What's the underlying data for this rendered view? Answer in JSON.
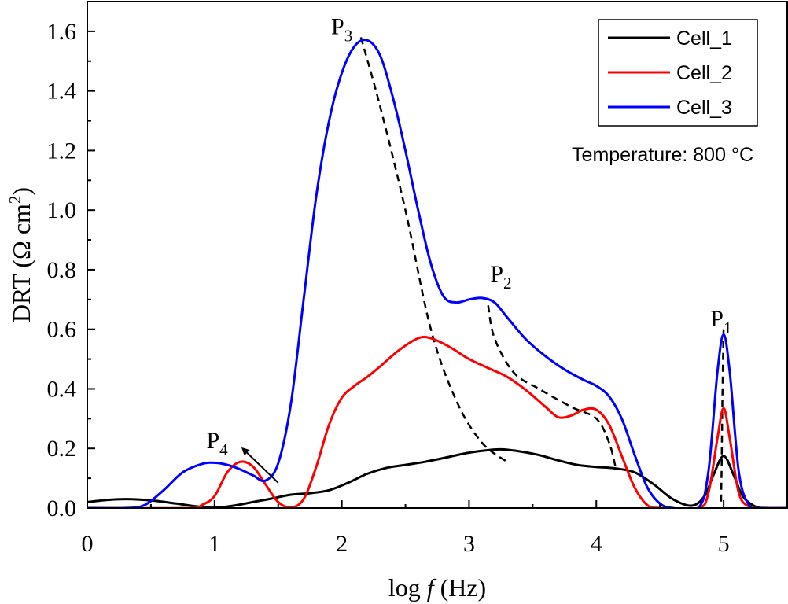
{
  "chart_data": {
    "type": "line",
    "xlabel": "log f (Hz)",
    "xlabel_parts": {
      "pre": "log ",
      "italic": "f",
      "post": " (Hz)"
    },
    "ylabel": "DRT (Ω cm2)",
    "ylabel_parts": {
      "main": "DRT (Ω cm",
      "sup": "2",
      "close": ")"
    },
    "xlim": [
      0,
      5.5
    ],
    "ylim": [
      0,
      1.7
    ],
    "x_ticks": [
      0,
      1,
      2,
      3,
      4,
      5
    ],
    "x_tick_labels": [
      "0",
      "1",
      "2",
      "3",
      "4",
      "5"
    ],
    "y_ticks": [
      0,
      0.2,
      0.4,
      0.6,
      0.8,
      1.0,
      1.2,
      1.4,
      1.6
    ],
    "y_tick_labels": [
      "0.0",
      "0.2",
      "0.4",
      "0.6",
      "0.8",
      "1.0",
      "1.2",
      "1.4",
      "1.6"
    ],
    "grid": false,
    "legend_position": "top-right",
    "annotation": "Temperature: 800 °C",
    "series": [
      {
        "name": "Cell_1",
        "color": "#000000",
        "points": [
          [
            0,
            0.02
          ],
          [
            0.15,
            0.027
          ],
          [
            0.3,
            0.03
          ],
          [
            0.5,
            0.026
          ],
          [
            0.7,
            0.015
          ],
          [
            0.85,
            0.006
          ],
          [
            1.0,
            0.001
          ],
          [
            1.15,
            0.008
          ],
          [
            1.3,
            0.02
          ],
          [
            1.45,
            0.032
          ],
          [
            1.6,
            0.045
          ],
          [
            1.75,
            0.05
          ],
          [
            1.9,
            0.06
          ],
          [
            2.05,
            0.085
          ],
          [
            2.2,
            0.115
          ],
          [
            2.35,
            0.135
          ],
          [
            2.5,
            0.145
          ],
          [
            2.65,
            0.155
          ],
          [
            2.8,
            0.168
          ],
          [
            2.95,
            0.182
          ],
          [
            3.1,
            0.192
          ],
          [
            3.25,
            0.197
          ],
          [
            3.4,
            0.19
          ],
          [
            3.55,
            0.178
          ],
          [
            3.7,
            0.16
          ],
          [
            3.85,
            0.145
          ],
          [
            4.0,
            0.138
          ],
          [
            4.15,
            0.133
          ],
          [
            4.3,
            0.12
          ],
          [
            4.45,
            0.08
          ],
          [
            4.6,
            0.03
          ],
          [
            4.75,
            0.008
          ],
          [
            4.85,
            0.04
          ],
          [
            4.92,
            0.11
          ],
          [
            5.0,
            0.175
          ],
          [
            5.08,
            0.11
          ],
          [
            5.15,
            0.04
          ],
          [
            5.25,
            0.005
          ],
          [
            5.35,
            0
          ],
          [
            5.5,
            0
          ]
        ]
      },
      {
        "name": "Cell_2",
        "color": "#ff0000",
        "points": [
          [
            0,
            0
          ],
          [
            0.8,
            0
          ],
          [
            0.9,
            0.01
          ],
          [
            1.0,
            0.04
          ],
          [
            1.1,
            0.12
          ],
          [
            1.2,
            0.155
          ],
          [
            1.3,
            0.14
          ],
          [
            1.4,
            0.08
          ],
          [
            1.5,
            0.02
          ],
          [
            1.6,
            0.002
          ],
          [
            1.7,
            0.03
          ],
          [
            1.8,
            0.14
          ],
          [
            1.9,
            0.28
          ],
          [
            2.0,
            0.37
          ],
          [
            2.1,
            0.41
          ],
          [
            2.2,
            0.44
          ],
          [
            2.3,
            0.475
          ],
          [
            2.45,
            0.53
          ],
          [
            2.6,
            0.57
          ],
          [
            2.7,
            0.57
          ],
          [
            2.85,
            0.54
          ],
          [
            3.0,
            0.5
          ],
          [
            3.15,
            0.47
          ],
          [
            3.3,
            0.44
          ],
          [
            3.45,
            0.395
          ],
          [
            3.6,
            0.34
          ],
          [
            3.7,
            0.305
          ],
          [
            3.8,
            0.31
          ],
          [
            3.9,
            0.33
          ],
          [
            4.0,
            0.33
          ],
          [
            4.1,
            0.28
          ],
          [
            4.2,
            0.175
          ],
          [
            4.3,
            0.07
          ],
          [
            4.4,
            0.01
          ],
          [
            4.5,
            0
          ],
          [
            4.8,
            0
          ],
          [
            4.88,
            0.05
          ],
          [
            4.95,
            0.23
          ],
          [
            5.0,
            0.335
          ],
          [
            5.05,
            0.23
          ],
          [
            5.12,
            0.05
          ],
          [
            5.2,
            0.005
          ],
          [
            5.3,
            0
          ],
          [
            5.5,
            0
          ]
        ]
      },
      {
        "name": "Cell_3",
        "color": "#0000ff",
        "points": [
          [
            0,
            0
          ],
          [
            0.3,
            0
          ],
          [
            0.45,
            0.01
          ],
          [
            0.6,
            0.06
          ],
          [
            0.75,
            0.12
          ],
          [
            0.9,
            0.148
          ],
          [
            1.0,
            0.152
          ],
          [
            1.1,
            0.145
          ],
          [
            1.2,
            0.13
          ],
          [
            1.3,
            0.11
          ],
          [
            1.4,
            0.092
          ],
          [
            1.5,
            0.15
          ],
          [
            1.6,
            0.35
          ],
          [
            1.7,
            0.7
          ],
          [
            1.8,
            1.05
          ],
          [
            1.9,
            1.3
          ],
          [
            2.0,
            1.46
          ],
          [
            2.1,
            1.55
          ],
          [
            2.2,
            1.57
          ],
          [
            2.3,
            1.52
          ],
          [
            2.4,
            1.38
          ],
          [
            2.5,
            1.2
          ],
          [
            2.6,
            1.0
          ],
          [
            2.7,
            0.82
          ],
          [
            2.8,
            0.71
          ],
          [
            2.9,
            0.69
          ],
          [
            3.0,
            0.7
          ],
          [
            3.1,
            0.705
          ],
          [
            3.2,
            0.69
          ],
          [
            3.3,
            0.64
          ],
          [
            3.45,
            0.565
          ],
          [
            3.6,
            0.51
          ],
          [
            3.75,
            0.465
          ],
          [
            3.9,
            0.43
          ],
          [
            4.0,
            0.41
          ],
          [
            4.1,
            0.375
          ],
          [
            4.2,
            0.3
          ],
          [
            4.3,
            0.18
          ],
          [
            4.4,
            0.07
          ],
          [
            4.5,
            0.015
          ],
          [
            4.6,
            0
          ],
          [
            4.8,
            0
          ],
          [
            4.88,
            0.12
          ],
          [
            4.95,
            0.45
          ],
          [
            5.0,
            0.582
          ],
          [
            5.05,
            0.45
          ],
          [
            5.12,
            0.12
          ],
          [
            5.2,
            0.01
          ],
          [
            5.3,
            0
          ],
          [
            5.5,
            0
          ]
        ]
      }
    ],
    "guides": [
      {
        "points": [
          [
            2.15,
            1.58
          ],
          [
            2.3,
            1.35
          ],
          [
            2.5,
            1.0
          ],
          [
            2.7,
            0.6
          ],
          [
            2.9,
            0.36
          ],
          [
            3.1,
            0.22
          ],
          [
            3.3,
            0.155
          ]
        ]
      },
      {
        "points": [
          [
            3.15,
            0.68
          ],
          [
            3.2,
            0.57
          ],
          [
            3.35,
            0.455
          ],
          [
            3.55,
            0.4
          ],
          [
            3.8,
            0.34
          ],
          [
            4.0,
            0.3
          ],
          [
            4.1,
            0.22
          ],
          [
            4.15,
            0.14
          ]
        ]
      },
      {
        "points": [
          [
            5.0,
            0.6
          ],
          [
            4.99,
            0.35
          ],
          [
            4.985,
            0.15
          ],
          [
            4.98,
            0.02
          ]
        ]
      }
    ],
    "peaks": [
      {
        "base": "P",
        "sub": "1",
        "x": 4.98,
        "y": 0.61
      },
      {
        "base": "P",
        "sub": "2",
        "x": 3.25,
        "y": 0.76
      },
      {
        "base": "P",
        "sub": "3",
        "x": 2.0,
        "y": 1.59
      },
      {
        "base": "P",
        "sub": "4",
        "x": 1.02,
        "y": 0.2
      }
    ],
    "arrow": {
      "from": [
        1.5,
        0.085
      ],
      "to": [
        1.22,
        0.2
      ]
    }
  }
}
